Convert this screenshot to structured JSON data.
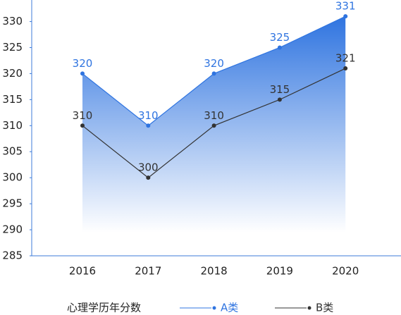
{
  "chart_data": {
    "type": "line",
    "legend_title": "心理学历年分数",
    "categories": [
      "2016",
      "2017",
      "2018",
      "2019",
      "2020"
    ],
    "series": [
      {
        "name": "A类",
        "color": "#2f74e0",
        "values": [
          320,
          310,
          320,
          325,
          331
        ]
      },
      {
        "name": "B类",
        "color": "#333333",
        "values": [
          310,
          300,
          310,
          315,
          321
        ]
      }
    ],
    "ylim": [
      285,
      334
    ],
    "yticks": [
      285,
      290,
      295,
      300,
      305,
      310,
      315,
      320,
      325,
      330
    ],
    "legend": "bottom"
  }
}
